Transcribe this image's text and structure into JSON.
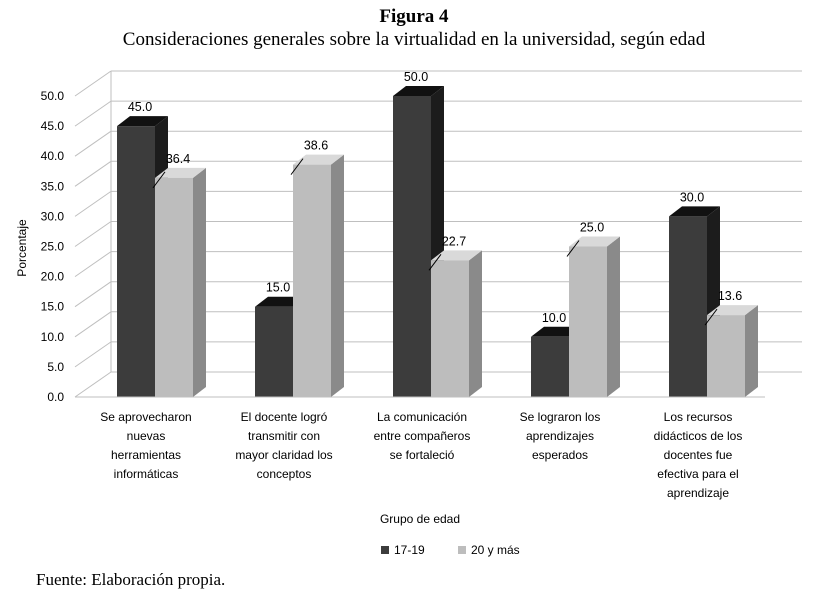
{
  "figure": {
    "number": "Figura 4",
    "title": "Consideraciones generales sobre la virtualidad en la universidad, según edad",
    "source": "Fuente: Elaboración propia."
  },
  "colors": {
    "series1_front": "#3c3c3c",
    "series1_top": "#111111",
    "series1_side": "#1c1c1c",
    "series2_front": "#bdbdbd",
    "series2_top": "#d9d9d9",
    "series2_side": "#8a8a8a",
    "grid": "#bfbfbf"
  },
  "chart_data": {
    "type": "bar",
    "title": "",
    "xlabel": "Grupo de edad",
    "ylabel": "Porcentaje",
    "ylim": [
      0,
      50
    ],
    "yticks": [
      "0.0",
      "5.0",
      "10.0",
      "15.0",
      "20.0",
      "25.0",
      "30.0",
      "35.0",
      "40.0",
      "45.0",
      "50.0"
    ],
    "categories": [
      [
        "Se aprovecharon",
        "nuevas",
        "herramientas",
        "informáticas"
      ],
      [
        "El docente logró",
        "transmitir con",
        "mayor claridad los",
        "conceptos"
      ],
      [
        "La comunicación",
        "entre compañeros",
        "se fortaleció"
      ],
      [
        "Se lograron los",
        "aprendizajes",
        "esperados"
      ],
      [
        "Los recursos",
        "didácticos de los",
        "docentes fue",
        "efectiva para el",
        "aprendizaje"
      ]
    ],
    "series": [
      {
        "name": "17-19",
        "values": [
          45.0,
          15.0,
          50.0,
          10.0,
          30.0
        ],
        "labels": [
          "45.0",
          "15.0",
          "50.0",
          "10.0",
          "30.0"
        ]
      },
      {
        "name": "20 y más",
        "values": [
          36.4,
          38.6,
          22.7,
          25.0,
          13.6
        ],
        "labels": [
          "36.4",
          "38.6",
          "22.7",
          "25.0",
          "13.6"
        ]
      }
    ],
    "legend_position": "bottom"
  }
}
